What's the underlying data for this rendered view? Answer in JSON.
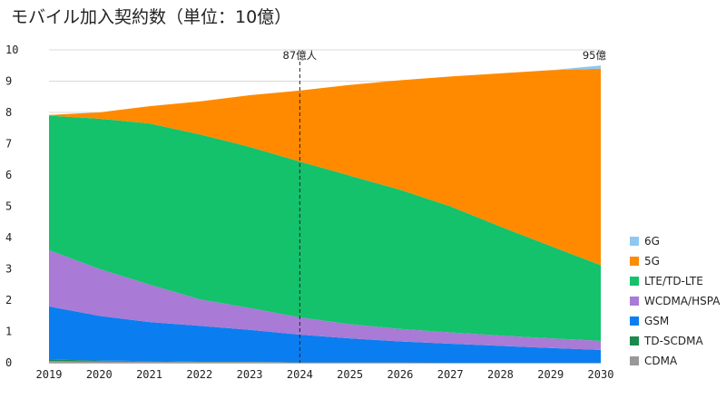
{
  "chart_data": {
    "type": "area",
    "stacked": true,
    "title": "モバイル加入契約数（単位：10億）",
    "x": [
      2019,
      2020,
      2021,
      2022,
      2023,
      2024,
      2025,
      2026,
      2027,
      2028,
      2029,
      2030
    ],
    "ylim": [
      0,
      10
    ],
    "yticks": [
      0,
      1,
      2,
      3,
      4,
      5,
      6,
      7,
      8,
      9,
      10
    ],
    "grid": true,
    "legend_position": "right-bottom",
    "series": [
      {
        "name": "CDMA",
        "color": "#999999",
        "values": [
          0.05,
          0.04,
          0.03,
          0.02,
          0.02,
          0.01,
          0.01,
          0.01,
          0.0,
          0.0,
          0.0,
          0.0
        ]
      },
      {
        "name": "TD-SCDMA",
        "color": "#1a8a4a",
        "values": [
          0.05,
          0.03,
          0.02,
          0.01,
          0.01,
          0.0,
          0.0,
          0.0,
          0.0,
          0.0,
          0.0,
          0.0
        ]
      },
      {
        "name": "GSM",
        "color": "#0a7ef0",
        "values": [
          1.7,
          1.43,
          1.25,
          1.15,
          1.02,
          0.89,
          0.77,
          0.67,
          0.61,
          0.54,
          0.47,
          0.41
        ]
      },
      {
        "name": "WCDMA/HSPA",
        "color": "#a97ad6",
        "values": [
          1.8,
          1.5,
          1.2,
          0.85,
          0.7,
          0.55,
          0.45,
          0.4,
          0.36,
          0.33,
          0.31,
          0.29
        ]
      },
      {
        "name": "LTE/TD-LTE",
        "color": "#13c26b",
        "values": [
          4.3,
          4.8,
          5.15,
          5.27,
          5.15,
          4.98,
          4.75,
          4.45,
          4.03,
          3.48,
          2.95,
          2.42
        ]
      },
      {
        "name": "5G",
        "color": "#ff8a00",
        "values": [
          0.02,
          0.2,
          0.55,
          1.05,
          1.65,
          2.27,
          2.9,
          3.5,
          4.15,
          4.9,
          5.62,
          6.28
        ]
      },
      {
        "name": "6G",
        "color": "#8ec8f2",
        "values": [
          0.0,
          0.0,
          0.0,
          0.0,
          0.0,
          0.0,
          0.0,
          0.0,
          0.0,
          0.0,
          0.0,
          0.1
        ]
      }
    ],
    "legend_order": [
      "6G",
      "5G",
      "LTE/TD-LTE",
      "WCDMA/HSPA",
      "GSM",
      "TD-SCDMA",
      "CDMA"
    ],
    "annotations": [
      {
        "x": 2024,
        "text": "87億人",
        "style": "dashed-vertical-line"
      },
      {
        "x": 2030,
        "text": "95億"
      }
    ]
  }
}
